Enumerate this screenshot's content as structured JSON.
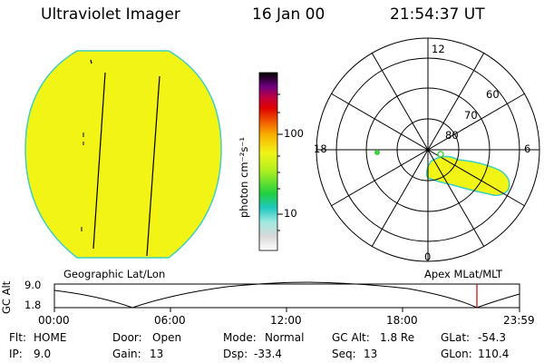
{
  "header": {
    "instrument": "Ultraviolet Imager",
    "date": "16 Jan 00",
    "time": "21:54:37 UT"
  },
  "colorbar": {
    "unit_label": "photon cm⁻²s⁻¹",
    "ticks": [
      "100",
      "10"
    ]
  },
  "polar_plot": {
    "mlt_labels": {
      "top": "12",
      "bottom": "0",
      "left": "18",
      "right": "6"
    },
    "lat_labels": [
      "60",
      "70",
      "80"
    ]
  },
  "map_labels": {
    "left": "Geographic Lat/Lon",
    "right": "Apex MLat/MLT"
  },
  "altitude_strip": {
    "ylabel": "GC Alt",
    "y_ticks": [
      "9.0",
      "1.8"
    ],
    "x_ticks": [
      "00:00",
      "06:00",
      "12:00",
      "18:00",
      "23:59"
    ]
  },
  "status": {
    "row1": [
      {
        "key": "Flt:",
        "value": "HOME"
      },
      {
        "key": "Door:",
        "value": "Open"
      },
      {
        "key": "Mode:",
        "value": "Normal"
      },
      {
        "key": "GC Alt:",
        "value": "1.8 Re"
      },
      {
        "key": "GLat:",
        "value": "-54.3"
      }
    ],
    "row2": [
      {
        "key": "IP:",
        "value": "9.0"
      },
      {
        "key": "Gain:",
        "value": "13"
      },
      {
        "key": "Dsp:",
        "value": "-33.4"
      },
      {
        "key": "Seq:",
        "value": "13"
      },
      {
        "key": "GLon:",
        "value": "110.4"
      }
    ]
  },
  "colors": {
    "image_fill": "#f2f416",
    "limb": "#40d0c0",
    "marker": "#c00000"
  }
}
